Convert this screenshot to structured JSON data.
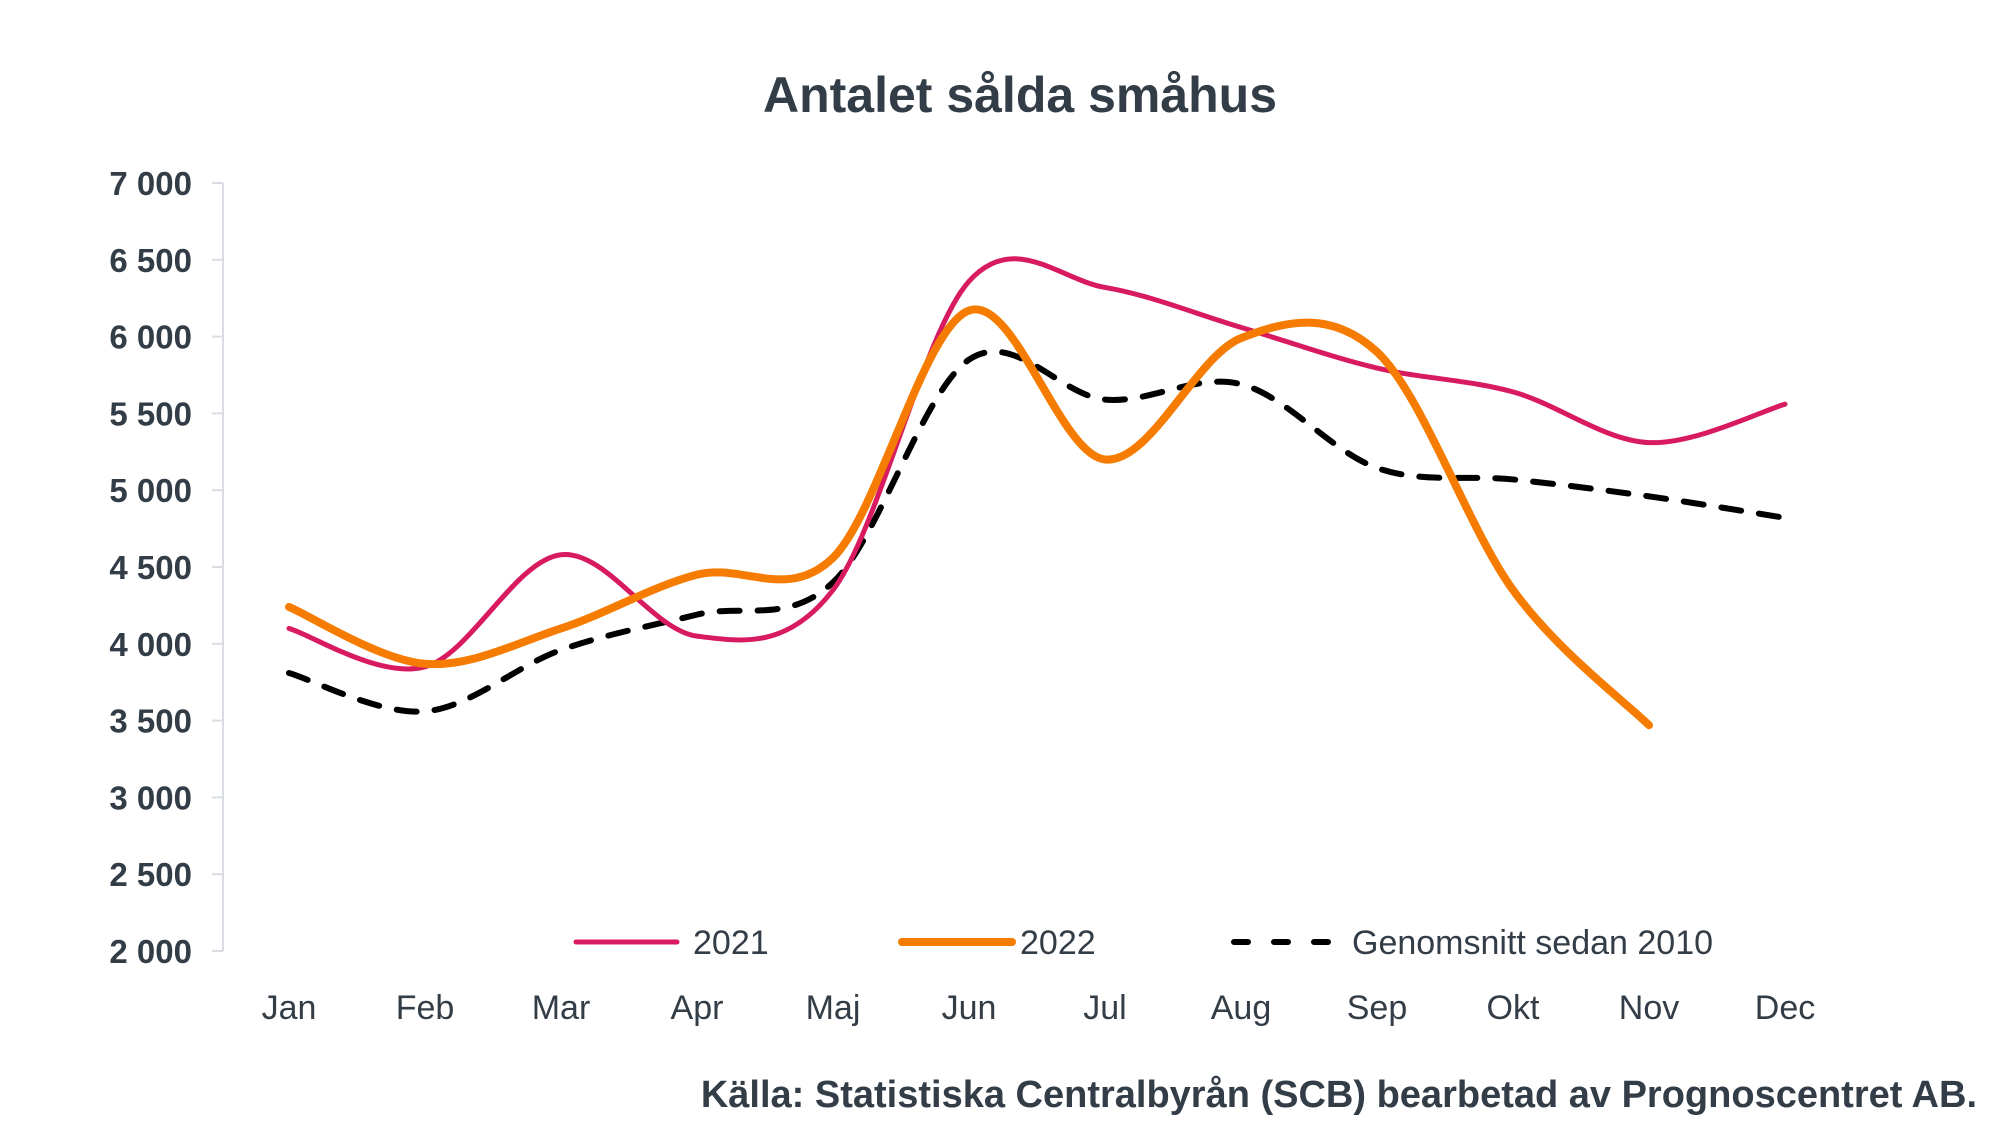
{
  "chart_data": {
    "type": "line",
    "title": "Antalet sålda småhus",
    "xlabel": "",
    "ylabel": "",
    "categories": [
      "Jan",
      "Feb",
      "Mar",
      "Apr",
      "Maj",
      "Jun",
      "Jul",
      "Aug",
      "Sep",
      "Okt",
      "Nov",
      "Dec"
    ],
    "ylim": [
      2000,
      7000
    ],
    "yticks": [
      2000,
      2500,
      3000,
      3500,
      4000,
      4500,
      5000,
      5500,
      6000,
      6500,
      7000
    ],
    "ytick_labels": [
      "2 000",
      "2 500",
      "3 000",
      "3 500",
      "4 000",
      "4 500",
      "5 000",
      "5 500",
      "6 000",
      "6 500",
      "7 000"
    ],
    "grid": false,
    "legend_position": "bottom-inside",
    "series": [
      {
        "name": "2021",
        "color": "#d81b60",
        "style": "solid",
        "values": [
          4100,
          3850,
          4580,
          4050,
          4350,
          6360,
          6320,
          6060,
          5795,
          5640,
          5310,
          5560
        ]
      },
      {
        "name": "2022",
        "color": "#f57c00",
        "style": "solid-thick",
        "values": [
          4240,
          3870,
          4100,
          4450,
          4560,
          6170,
          5200,
          5990,
          5900,
          4350,
          3470,
          null
        ]
      },
      {
        "name": "Genomsnitt sedan 2010",
        "color": "#000000",
        "style": "dashed",
        "values": [
          3810,
          3560,
          3960,
          4190,
          4400,
          5850,
          5590,
          5690,
          5145,
          5070,
          4960,
          4820
        ]
      }
    ],
    "source": "Källa: Statistiska Centralbyrån (SCB) bearbetad av Prognoscentret AB."
  }
}
